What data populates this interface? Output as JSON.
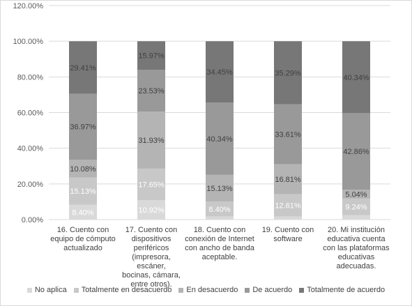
{
  "chart_data": {
    "type": "bar",
    "stacked": true,
    "title": "",
    "xlabel": "",
    "ylabel": "",
    "ylim": [
      0,
      120
    ],
    "yticks": [
      "0.00%",
      "20.00%",
      "40.00%",
      "60.00%",
      "80.00%",
      "100.00%",
      "120.00%"
    ],
    "grid": true,
    "legend_position": "bottom",
    "categories": [
      "16. Cuento con equipo de cómputo actualizado",
      "17. Cuento con dispositivos periféricos (impresora, escáner, bocinas, cámara, entre otros).",
      "18. Cuento con conexión de Internet con ancho de banda aceptable.",
      "19. Cuento con software",
      "20. Mi institución educativa cuenta con las plataformas educativas adecuadas."
    ],
    "category_lines": [
      [
        "16. Cuento con",
        "equipo de cómputo",
        "actualizado"
      ],
      [
        "17. Cuento con",
        "dispositivos",
        "periféricos",
        "(impresora, escáner,",
        "bocinas, cámara,",
        "entre otros)."
      ],
      [
        "18. Cuento con",
        "conexión de Internet",
        "con ancho de banda",
        "aceptable."
      ],
      [
        "19. Cuento con",
        "software"
      ],
      [
        "20. Mi institución",
        "educativa cuenta",
        "con las plataformas",
        "educativas",
        "adecuadas."
      ]
    ],
    "series": [
      {
        "name": "No aplica",
        "color": "#d9d9d9",
        "values": [
          8.4,
          10.92,
          1.68,
          1.68,
          2.52
        ],
        "labels": [
          "8.40%",
          "10.92%",
          "1.68%",
          "1.68%",
          "2.52%"
        ]
      },
      {
        "name": "Totalmente en desacuerdo",
        "color": "#c8c8c8",
        "values": [
          15.13,
          17.65,
          8.4,
          12.61,
          9.24
        ],
        "labels": [
          "15.13%",
          "17.65%",
          "8.40%",
          "12.61%",
          "9.24%"
        ]
      },
      {
        "name": "En desacuerdo",
        "color": "#b4b4b4",
        "values": [
          10.08,
          31.93,
          15.13,
          16.81,
          5.04
        ],
        "labels": [
          "10.08%",
          "31.93%",
          "15.13%",
          "16.81%",
          "5.04%"
        ]
      },
      {
        "name": "De acuerdo",
        "color": "#999999",
        "values": [
          36.97,
          23.53,
          40.34,
          33.61,
          42.86
        ],
        "labels": [
          "36.97%",
          "23.53%",
          "40.34%",
          "33.61%",
          "42.86%"
        ]
      },
      {
        "name": "Totalmente de acuerdo",
        "color": "#777777",
        "values": [
          29.41,
          15.97,
          34.45,
          35.29,
          40.34
        ],
        "labels": [
          "29.41%",
          "15.97%",
          "34.45%",
          "35.29%",
          "40.34%"
        ]
      }
    ]
  }
}
